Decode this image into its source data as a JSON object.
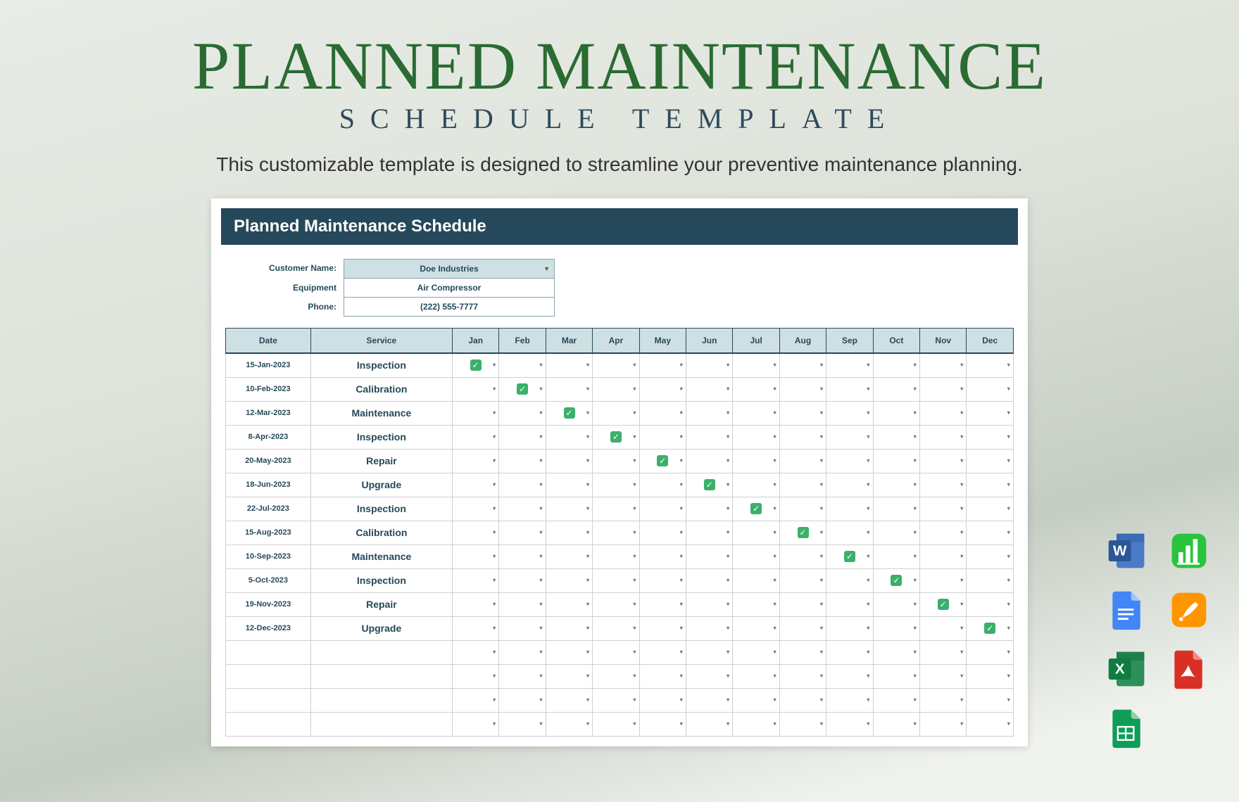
{
  "hero": {
    "title": "PLANNED MAINTENANCE",
    "subtitle": "SCHEDULE TEMPLATE",
    "description": "This customizable template is designed to streamline your preventive maintenance planning."
  },
  "doc": {
    "header": "Planned Maintenance Schedule",
    "meta": {
      "customer_label": "Customer Name:",
      "customer_value": "Doe Industries",
      "equipment_label": "Equipment",
      "equipment_value": "Air Compressor",
      "phone_label": "Phone:",
      "phone_value": "(222) 555-7777"
    }
  },
  "table": {
    "columns": [
      "Date",
      "Service",
      "Jan",
      "Feb",
      "Mar",
      "Apr",
      "May",
      "Jun",
      "Jul",
      "Aug",
      "Sep",
      "Oct",
      "Nov",
      "Dec"
    ],
    "header_bg": "#cfe0e4",
    "header_fg": "#25495a",
    "check_color": "#3bb06a",
    "rows": [
      {
        "date": "15-Jan-2023",
        "service": "Inspection",
        "checked": 0
      },
      {
        "date": "10-Feb-2023",
        "service": "Calibration",
        "checked": 1
      },
      {
        "date": "12-Mar-2023",
        "service": "Maintenance",
        "checked": 2
      },
      {
        "date": "8-Apr-2023",
        "service": "Inspection",
        "checked": 3
      },
      {
        "date": "20-May-2023",
        "service": "Repair",
        "checked": 4
      },
      {
        "date": "18-Jun-2023",
        "service": "Upgrade",
        "checked": 5
      },
      {
        "date": "22-Jul-2023",
        "service": "Inspection",
        "checked": 6
      },
      {
        "date": "15-Aug-2023",
        "service": "Calibration",
        "checked": 7
      },
      {
        "date": "10-Sep-2023",
        "service": "Maintenance",
        "checked": 8
      },
      {
        "date": "5-Oct-2023",
        "service": "Inspection",
        "checked": 9
      },
      {
        "date": "19-Nov-2023",
        "service": "Repair",
        "checked": 10
      },
      {
        "date": "12-Dec-2023",
        "service": "Upgrade",
        "checked": 11
      }
    ],
    "empty_rows": 4
  },
  "formats": [
    {
      "name": "word",
      "bg": "#2b5797",
      "letter": "W"
    },
    {
      "name": "numbers",
      "bg": "#29c43d",
      "letter": ""
    },
    {
      "name": "gdocs",
      "bg": "#4285f4",
      "letter": ""
    },
    {
      "name": "pages",
      "bg": "#ff9500",
      "letter": ""
    },
    {
      "name": "excel",
      "bg": "#107c41",
      "letter": "X"
    },
    {
      "name": "pdf",
      "bg": "#d93025",
      "letter": ""
    },
    {
      "name": "gsheets",
      "bg": "#0f9d58",
      "letter": ""
    }
  ],
  "colors": {
    "title": "#2a6b32",
    "subtitle": "#2f4a5c",
    "doc_header_bg": "#25495a"
  }
}
